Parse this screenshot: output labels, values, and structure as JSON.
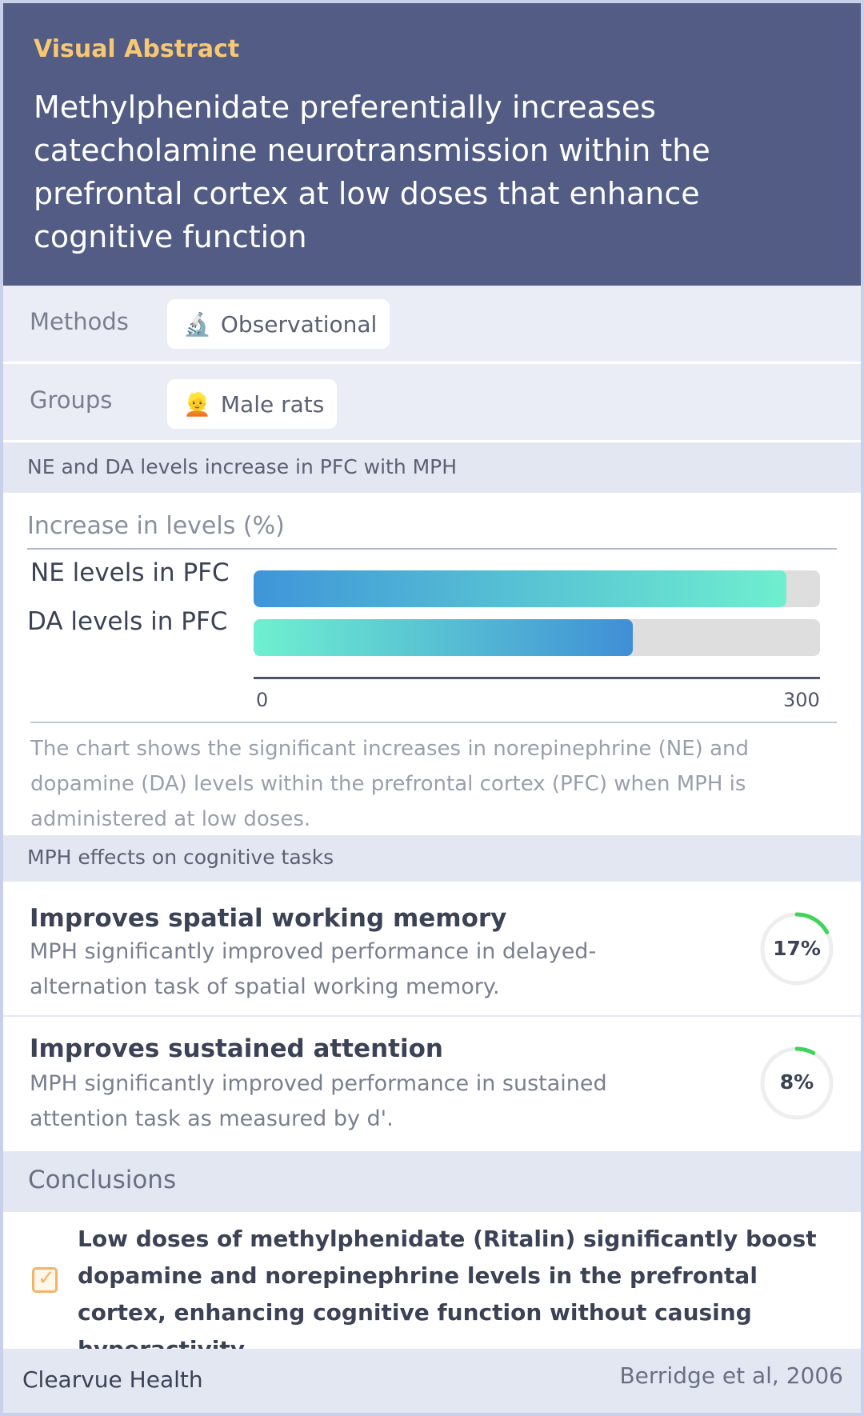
{
  "header": {
    "eyebrow": "Visual Abstract",
    "headline": "Methylphenidate preferentially increases catecholamine neurotransmission within the prefrontal cortex at low doses that enhance cognitive function"
  },
  "methods": {
    "label": "Methods",
    "icon": "microscope-icon",
    "value": "Observational"
  },
  "groups": {
    "label": "Groups",
    "icon": "person-icon",
    "value": "Male rats"
  },
  "levels_section": {
    "heading": "NE and DA levels increase in PFC with MPH",
    "caption": "The chart shows the significant increases in norepinephrine (NE) and dopamine (DA) levels within the prefrontal cortex (PFC) when MPH is administered at low doses."
  },
  "chart_data": {
    "type": "bar",
    "title": "Increase in levels (%)",
    "categories": [
      "NE levels in PFC",
      "DA levels in PFC"
    ],
    "values": [
      282,
      201
    ],
    "xlim": [
      0,
      300
    ],
    "ticks": [
      "0",
      "300"
    ],
    "orientation": "horizontal"
  },
  "cognitive_section": {
    "heading": "MPH effects on cognitive tasks",
    "findings": [
      {
        "title": "Improves spatial working memory",
        "description": "MPH significantly improved performance in delayed-alternation task of spatial working memory.",
        "percent_label": "17%",
        "percent": 17
      },
      {
        "title": "Improves sustained attention",
        "description": "MPH significantly improved performance in sustained attention task as measured by d'.",
        "percent_label": "8%",
        "percent": 8
      }
    ]
  },
  "conclusions": {
    "heading": "Conclusions",
    "text": "Low doses of methylphenidate (Ritalin) significantly boost dopamine and norepinephrine levels in the prefrontal cortex, enhancing cognitive function without causing hyperactivity."
  },
  "footer": {
    "brand": "Clearvue Health",
    "citation": "Berridge et al, 2006"
  },
  "colors": {
    "header_bg": "#525c84",
    "eyebrow": "#f7c873",
    "bar_blue": "#3f95d8",
    "bar_mint": "#6fefcf",
    "ring_green": "#3fd45a",
    "check_orange": "#f2b46a"
  }
}
